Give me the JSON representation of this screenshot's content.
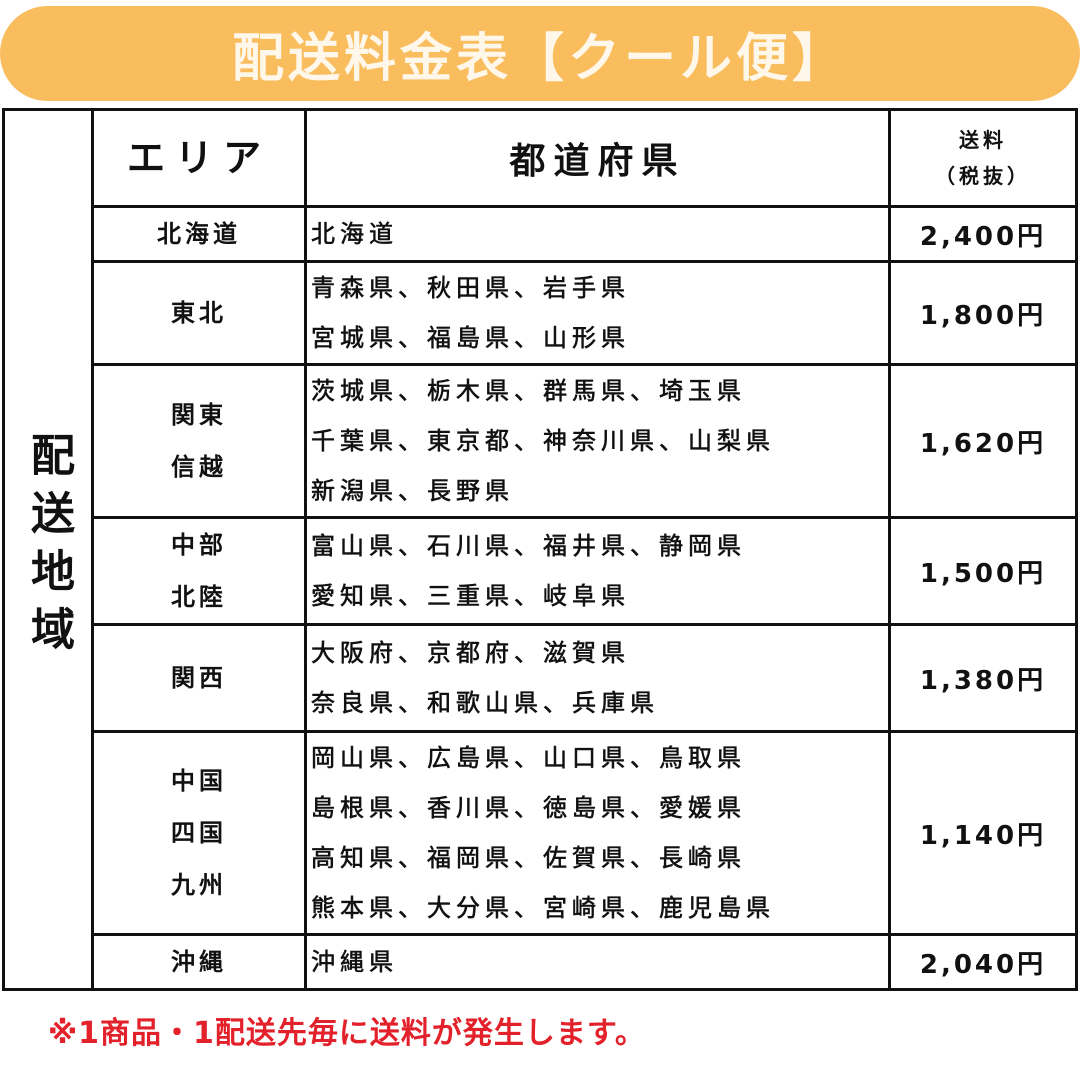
{
  "title": "配送料金表【クール便】",
  "table": {
    "region_label": "配送地域",
    "headers": {
      "area": "エリア",
      "prefectures": "都道府県",
      "price_line1": "送料",
      "price_line2": "（税抜）"
    },
    "rows": [
      {
        "area": [
          "北海道"
        ],
        "prefectures": [
          "北海道"
        ],
        "price": "2,400円"
      },
      {
        "area": [
          "東北"
        ],
        "prefectures": [
          "青森県、秋田県、岩手県",
          "宮城県、福島県、山形県"
        ],
        "price": "1,800円"
      },
      {
        "area": [
          "関東",
          "信越"
        ],
        "prefectures": [
          "茨城県、栃木県、群馬県、埼玉県",
          "千葉県、東京都、神奈川県、山梨県",
          "新潟県、長野県"
        ],
        "price": "1,620円"
      },
      {
        "area": [
          "中部",
          "北陸"
        ],
        "prefectures": [
          "富山県、石川県、福井県、静岡県",
          "愛知県、三重県、岐阜県"
        ],
        "price": "1,500円"
      },
      {
        "area": [
          "関西"
        ],
        "prefectures": [
          "大阪府、京都府、滋賀県",
          "奈良県、和歌山県、兵庫県"
        ],
        "price": "1,380円"
      },
      {
        "area": [
          "中国",
          "四国",
          "九州"
        ],
        "prefectures": [
          "岡山県、広島県、山口県、鳥取県",
          "島根県、香川県、徳島県、愛媛県",
          "高知県、福岡県、佐賀県、長崎県",
          "熊本県、大分県、宮崎県、鹿児島県"
        ],
        "price": "1,140円"
      },
      {
        "area": [
          "沖縄"
        ],
        "prefectures": [
          "沖縄県"
        ],
        "price": "2,040円"
      }
    ]
  },
  "note": "※1商品・1配送先毎に送料が発生します。",
  "colors": {
    "banner": "#f9bd5e",
    "banner_text": "#fff8ea",
    "note": "#e3212b"
  }
}
